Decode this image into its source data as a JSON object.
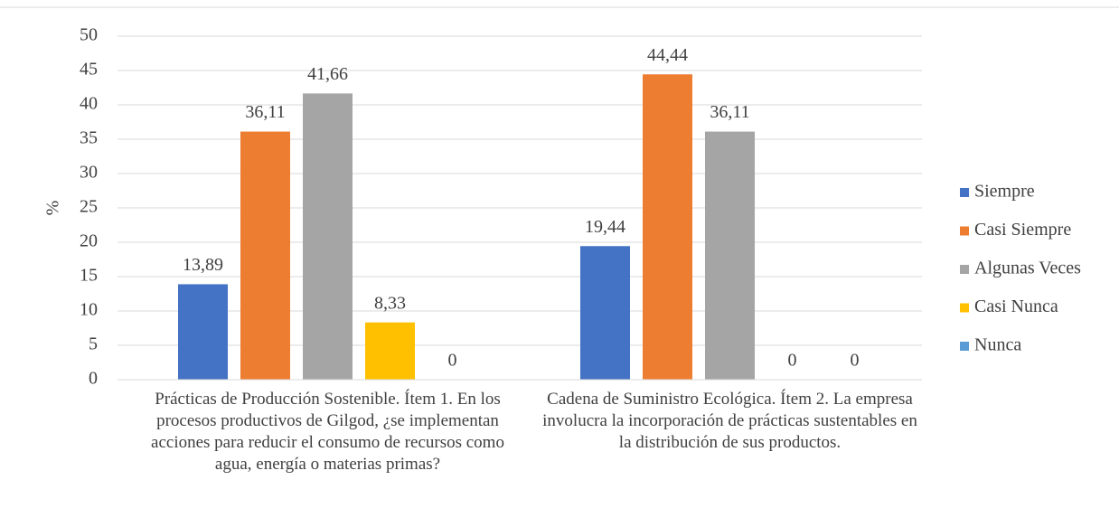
{
  "chart_data": {
    "type": "bar",
    "y_label": "%",
    "categories": [
      "Prácticas de Producción Sostenible. Ítem 1. En los procesos productivos de Gilgod, ¿se implementan acciones para reducir el consumo de recursos como agua, energía o materias primas?",
      "Cadena de Suministro Ecológica. Ítem 2. La empresa involucra la incorporación de prácticas sustentables en la distribución de sus productos."
    ],
    "series": [
      {
        "name": "Siempre",
        "color": "#4472c4",
        "values": [
          13.89,
          19.44
        ],
        "value_labels": [
          "13,89",
          "19,44"
        ]
      },
      {
        "name": "Casi Siempre",
        "color": "#ed7d31",
        "values": [
          36.11,
          44.44
        ],
        "value_labels": [
          "36,11",
          "44,44"
        ]
      },
      {
        "name": "Algunas Veces",
        "color": "#a5a5a5",
        "values": [
          41.66,
          36.11
        ],
        "value_labels": [
          "41,66",
          "36,11"
        ]
      },
      {
        "name": "Casi Nunca",
        "color": "#ffc000",
        "values": [
          8.33,
          0
        ],
        "value_labels": [
          "8,33",
          "0"
        ]
      },
      {
        "name": "Nunca",
        "color": "#5b9bd5",
        "values": [
          0,
          0
        ],
        "value_labels": [
          "0",
          "0"
        ]
      }
    ],
    "ylim": [
      0,
      50
    ],
    "yticks": [
      0,
      5,
      10,
      15,
      20,
      25,
      30,
      35,
      40,
      45,
      50
    ],
    "grid": true,
    "legend": "right"
  }
}
